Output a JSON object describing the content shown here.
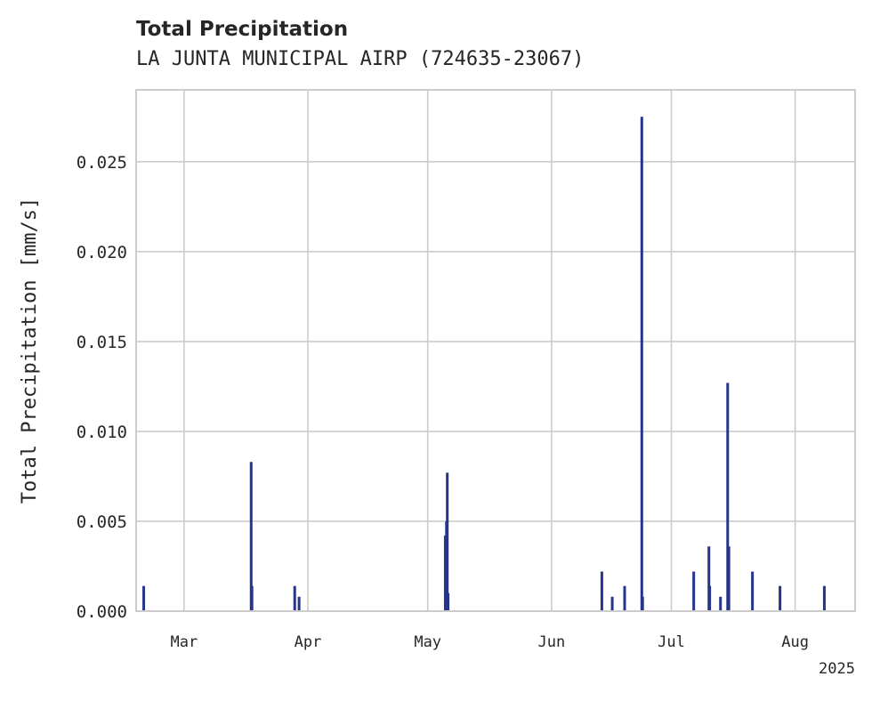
{
  "chart_data": {
    "type": "bar",
    "title": "Total Precipitation",
    "subtitle": "LA JUNTA MUNICIPAL AIRP (724635-23067)",
    "xlabel": "",
    "ylabel": "Total Precipitation [mm/s]",
    "year_label": "2025",
    "ylim": [
      0,
      0.029
    ],
    "yticks": [
      0.0,
      0.005,
      0.01,
      0.015,
      0.02,
      0.025
    ],
    "ytick_labels": [
      "0.000",
      "0.005",
      "0.010",
      "0.015",
      "0.020",
      "0.025"
    ],
    "xlim_days": [
      -4,
      176
    ],
    "xticks": [
      {
        "day": 8,
        "label": "Mar"
      },
      {
        "day": 39,
        "label": "Apr"
      },
      {
        "day": 69,
        "label": "May"
      },
      {
        "day": 100,
        "label": "Jun"
      },
      {
        "day": 130,
        "label": "Jul"
      },
      {
        "day": 161,
        "label": "Aug"
      }
    ],
    "day_origin": "2025-02-21",
    "grid": true,
    "bar_color": "#27348b",
    "series": [
      {
        "name": "Total Precipitation",
        "days": [
          -2.1,
          24.8,
          25.0,
          35.7,
          36.8,
          73.4,
          73.7,
          73.9,
          74.1,
          112.6,
          115.2,
          118.3,
          122.6,
          122.8,
          135.6,
          139.4,
          139.6,
          142.3,
          144.1,
          144.4,
          150.3,
          157.2,
          168.3
        ],
        "values": [
          0.0014,
          0.0083,
          0.0014,
          0.0014,
          0.0008,
          0.0042,
          0.005,
          0.0077,
          0.001,
          0.0022,
          0.0008,
          0.0014,
          0.0275,
          0.0008,
          0.0022,
          0.0036,
          0.0014,
          0.0008,
          0.0127,
          0.0036,
          0.0022,
          0.0014,
          0.0014
        ]
      }
    ]
  }
}
